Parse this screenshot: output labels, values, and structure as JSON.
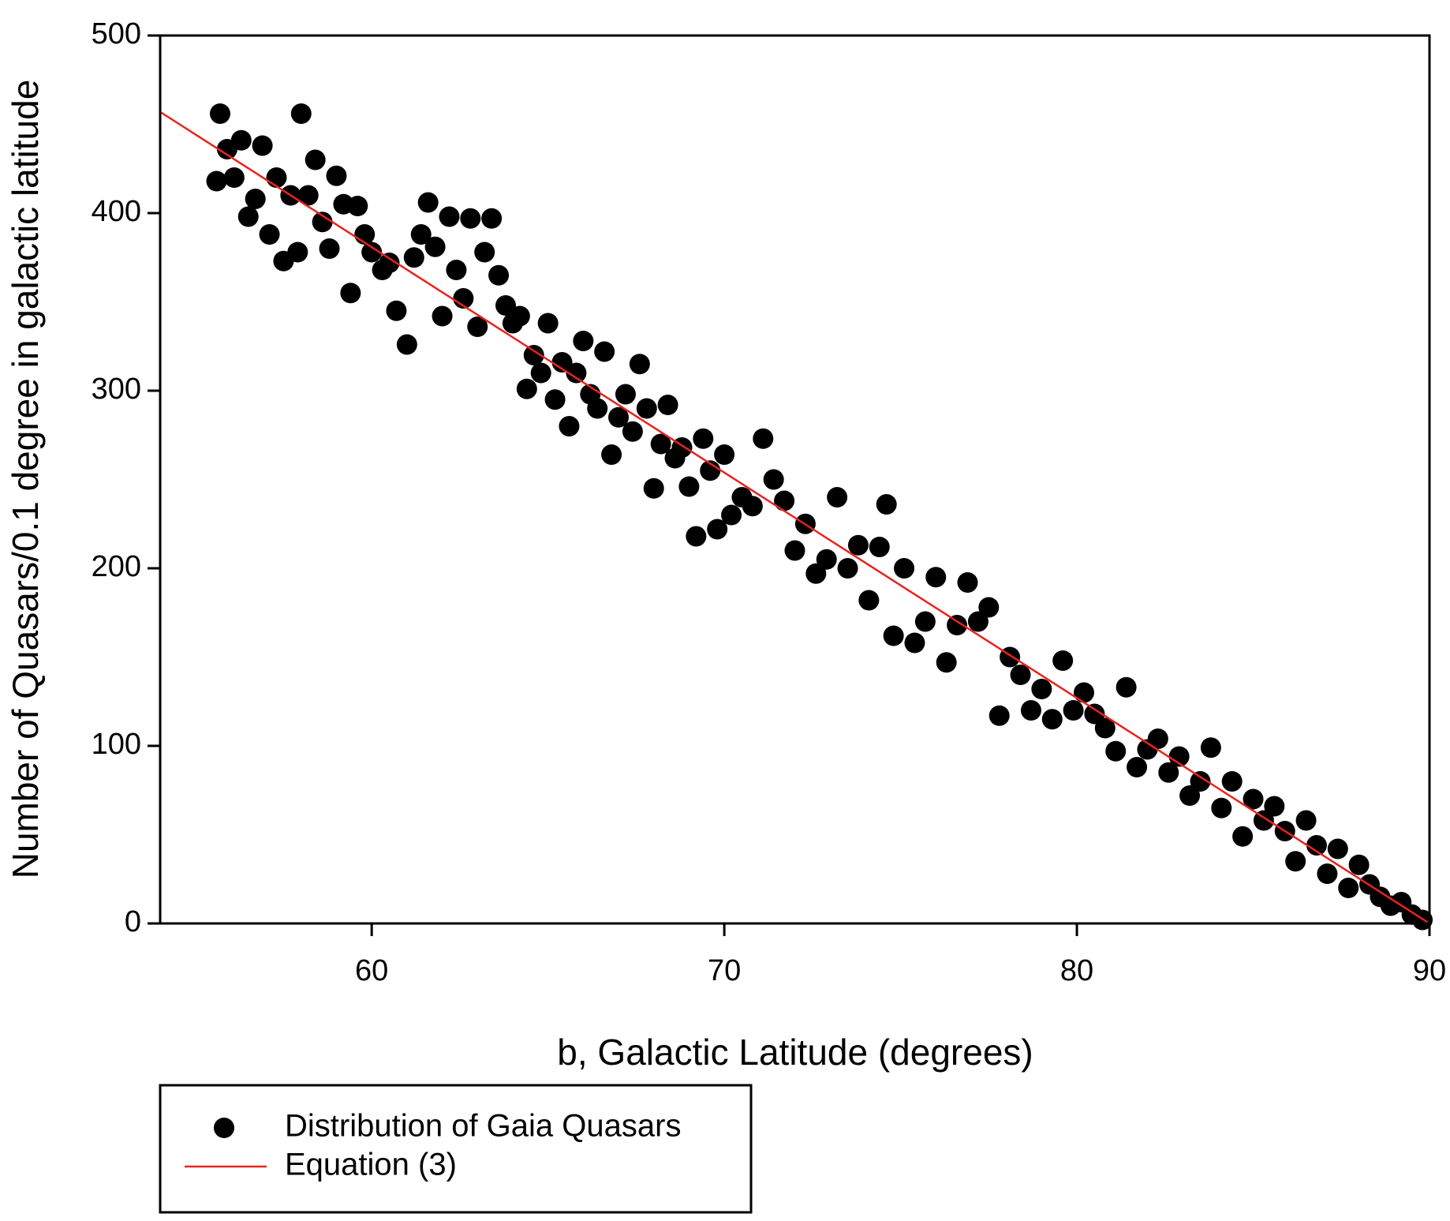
{
  "chart_data": {
    "type": "scatter",
    "xlabel": "b, Galactic Latitude (degrees)",
    "ylabel": "Number of Quasars/0.1 degree in galactic latitude",
    "xlim": [
      54,
      90
    ],
    "ylim": [
      0,
      500
    ],
    "xticks": [
      60,
      70,
      80,
      90
    ],
    "yticks": [
      0,
      100,
      200,
      300,
      400,
      500
    ],
    "legend": "bottom-left",
    "series": [
      {
        "name": "Distribution of Gaia Quasars",
        "color": "#000000",
        "style": "markers",
        "x": [
          55.6,
          55.7,
          55.9,
          56.1,
          56.3,
          56.5,
          56.7,
          56.9,
          57.1,
          57.3,
          57.5,
          57.7,
          57.9,
          58.0,
          58.2,
          58.4,
          58.6,
          58.8,
          59.0,
          59.2,
          59.4,
          59.6,
          59.8,
          60.0,
          60.3,
          60.5,
          60.7,
          61.0,
          61.2,
          61.4,
          61.6,
          61.8,
          62.0,
          62.2,
          62.4,
          62.6,
          62.8,
          63.0,
          63.2,
          63.4,
          63.6,
          63.8,
          64.0,
          64.2,
          64.4,
          64.6,
          64.8,
          65.0,
          65.2,
          65.4,
          65.6,
          65.8,
          66.0,
          66.2,
          66.4,
          66.6,
          66.8,
          67.0,
          67.2,
          67.4,
          67.6,
          67.8,
          68.0,
          68.2,
          68.4,
          68.6,
          68.8,
          69.0,
          69.2,
          69.4,
          69.6,
          69.8,
          70.0,
          70.2,
          70.5,
          70.8,
          71.1,
          71.4,
          71.7,
          72.0,
          72.3,
          72.6,
          72.9,
          73.2,
          73.5,
          73.8,
          74.1,
          74.4,
          74.6,
          74.8,
          75.1,
          75.4,
          75.7,
          76.0,
          76.3,
          76.6,
          76.9,
          77.2,
          77.5,
          77.8,
          78.1,
          78.4,
          78.7,
          79.0,
          79.3,
          79.6,
          79.9,
          80.2,
          80.5,
          80.8,
          81.1,
          81.4,
          81.7,
          82.0,
          82.3,
          82.6,
          82.9,
          83.2,
          83.5,
          83.8,
          84.1,
          84.4,
          84.7,
          85.0,
          85.3,
          85.6,
          85.9,
          86.2,
          86.5,
          86.8,
          87.1,
          87.4,
          87.7,
          88.0,
          88.3,
          88.6,
          88.9,
          89.2,
          89.5,
          89.8
        ],
        "values": [
          418,
          456,
          436,
          420,
          441,
          398,
          408,
          438,
          388,
          420,
          373,
          410,
          378,
          456,
          410,
          430,
          395,
          380,
          421,
          405,
          355,
          404,
          388,
          378,
          368,
          372,
          345,
          326,
          375,
          388,
          406,
          381,
          342,
          398,
          368,
          352,
          397,
          336,
          378,
          397,
          365,
          348,
          338,
          342,
          301,
          320,
          310,
          338,
          295,
          316,
          280,
          310,
          328,
          298,
          290,
          322,
          264,
          285,
          298,
          277,
          315,
          290,
          245,
          270,
          292,
          262,
          268,
          246,
          218,
          273,
          255,
          222,
          264,
          230,
          240,
          235,
          273,
          250,
          238,
          210,
          225,
          197,
          205,
          240,
          200,
          213,
          182,
          212,
          236,
          162,
          200,
          158,
          170,
          195,
          147,
          168,
          192,
          170,
          178,
          117,
          150,
          140,
          120,
          132,
          115,
          148,
          120,
          130,
          118,
          110,
          97,
          133,
          88,
          98,
          104,
          85,
          94,
          72,
          80,
          99,
          65,
          80,
          49,
          70,
          58,
          66,
          52,
          35,
          58,
          44,
          28,
          42,
          20,
          33,
          22,
          15,
          10,
          12,
          5,
          2
        ]
      },
      {
        "name": "Equation (3)",
        "color": "#e8231e",
        "style": "line",
        "x": [
          54,
          90
        ],
        "values": [
          457,
          0
        ]
      }
    ]
  }
}
